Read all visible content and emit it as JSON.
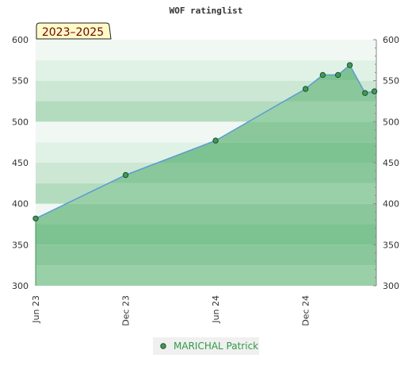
{
  "chart_data": {
    "type": "area",
    "title": "WOF ratinglist",
    "period_badge": "2023–2025",
    "xlabel": "",
    "ylabel": "",
    "ylim": [
      300,
      600
    ],
    "y_ticks": [
      300,
      350,
      400,
      450,
      500,
      550,
      600
    ],
    "x_tick_labels": [
      "Jun 23",
      "Dec 23",
      "Jun 24",
      "Dec 24"
    ],
    "x_tick_dates": [
      "2023-06-01",
      "2023-12-01",
      "2024-06-01",
      "2024-12-01"
    ],
    "xlim": [
      "2023-06-01",
      "2025-04-24"
    ],
    "grid": true,
    "legend_position": "bottom",
    "colors": {
      "line": "#5b9bd5",
      "fill": "#7dc391",
      "marker": "#3f9a57",
      "legend_text": "#2f9a47",
      "badge_bg": "#fffbc8",
      "badge_text": "#7a0000"
    },
    "series": [
      {
        "name": "MARICHAL Patrick",
        "points": [
          {
            "x": "2023-06-01",
            "y": 382
          },
          {
            "x": "2023-12-01",
            "y": 435
          },
          {
            "x": "2024-06-01",
            "y": 477
          },
          {
            "x": "2024-12-01",
            "y": 540
          },
          {
            "x": "2025-01-05",
            "y": 557
          },
          {
            "x": "2025-02-05",
            "y": 557
          },
          {
            "x": "2025-03-01",
            "y": 569
          },
          {
            "x": "2025-04-01",
            "y": 535
          },
          {
            "x": "2025-04-20",
            "y": 537
          }
        ]
      }
    ]
  }
}
